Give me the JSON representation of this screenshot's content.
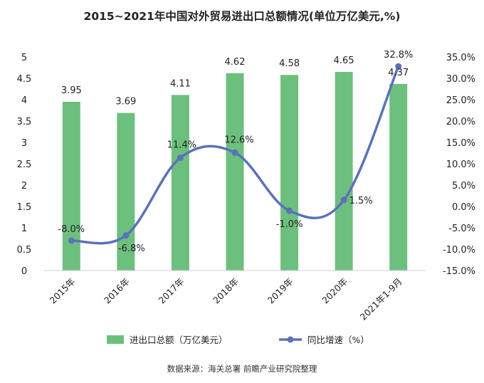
{
  "chart_data": {
    "type": "bar",
    "title": "2015~2021年中国对外贸易进出口总额情况(单位万亿美元,%)",
    "categories": [
      "2015年",
      "2016年",
      "2017年",
      "2018年",
      "2019年",
      "2020年",
      "2021年1-9月"
    ],
    "series": [
      {
        "name": "进出口总额（万亿美元）",
        "type": "bar",
        "axis": "left",
        "color": "#6dbf7e",
        "values": [
          3.95,
          3.69,
          4.11,
          4.62,
          4.58,
          4.65,
          4.37
        ],
        "labels": [
          "3.95",
          "3.69",
          "4.11",
          "4.62",
          "4.58",
          "4.65",
          "4.37"
        ]
      },
      {
        "name": "同比增速（%）",
        "type": "line",
        "axis": "right",
        "color": "#5b72b7",
        "smooth": true,
        "values": [
          -8.0,
          -6.8,
          11.4,
          12.6,
          -1.0,
          1.5,
          32.8
        ],
        "labels": [
          "-8.0%",
          "-6.8%",
          "11.4%",
          "12.6%",
          "-1.0%",
          "1.5%",
          "32.8%"
        ]
      }
    ],
    "y_left": {
      "ylim": [
        0,
        5
      ],
      "ticks": [
        "0",
        "0.5",
        "1",
        "1.5",
        "2",
        "2.5",
        "3",
        "3.5",
        "4",
        "4.5",
        "5"
      ]
    },
    "y_right": {
      "ylim": [
        -15,
        35
      ],
      "ticks": [
        "-15.0%",
        "-10.0%",
        "-5.0%",
        "0.0%",
        "5.0%",
        "10.0%",
        "15.0%",
        "20.0%",
        "25.0%",
        "30.0%",
        "35.0%"
      ]
    },
    "grid": false,
    "legend_position": "bottom"
  },
  "source": "数据来源：海关总署 前瞻产业研究院整理"
}
